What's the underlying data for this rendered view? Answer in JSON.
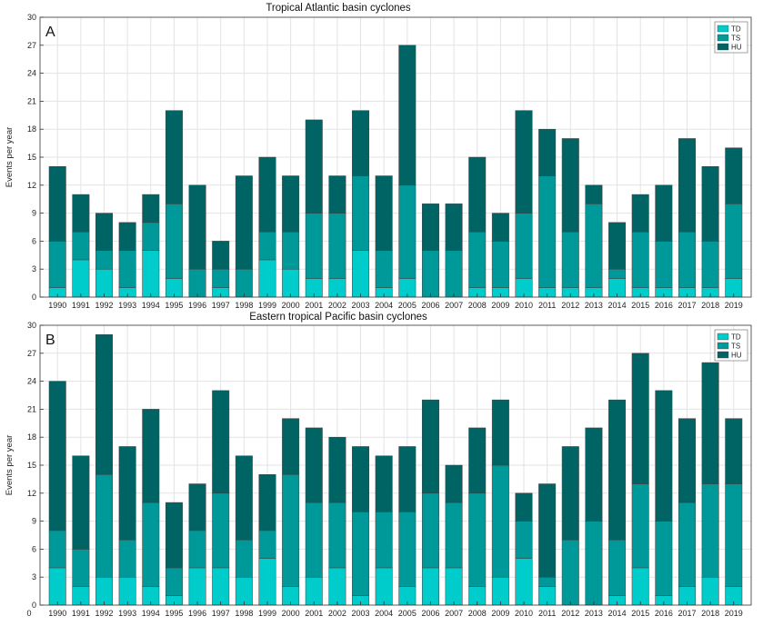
{
  "colors": {
    "TD": "#00cccc",
    "TS": "#009999",
    "HU": "#006464"
  },
  "chart_data": [
    {
      "type": "bar",
      "stacked": true,
      "panel_label": "A",
      "title": "Tropical Atlantic basin cyclones",
      "xlabel": "",
      "ylabel": "Events per year",
      "ylim": [
        0,
        30
      ],
      "yticks": [
        0,
        3,
        6,
        9,
        12,
        15,
        18,
        21,
        24,
        27,
        30
      ],
      "x_zero_label": "",
      "grid": true,
      "legend_position": "top-right",
      "categories": [
        "1990",
        "1991",
        "1992",
        "1993",
        "1994",
        "1995",
        "1996",
        "1997",
        "1998",
        "1999",
        "2000",
        "2001",
        "2002",
        "2003",
        "2004",
        "2005",
        "2006",
        "2007",
        "2008",
        "2009",
        "2010",
        "2011",
        "2012",
        "2013",
        "2014",
        "2015",
        "2016",
        "2017",
        "2018",
        "2019"
      ],
      "series": [
        {
          "name": "TD",
          "values": [
            1,
            4,
            3,
            1,
            5,
            2,
            0,
            1,
            0,
            4,
            3,
            2,
            2,
            5,
            1,
            2,
            0,
            0,
            1,
            1,
            2,
            1,
            1,
            1,
            2,
            1,
            1,
            1,
            1,
            2
          ]
        },
        {
          "name": "TS",
          "values": [
            5,
            3,
            2,
            4,
            3,
            8,
            3,
            2,
            3,
            3,
            4,
            7,
            7,
            8,
            4,
            10,
            5,
            5,
            6,
            5,
            7,
            12,
            6,
            9,
            1,
            6,
            5,
            6,
            5,
            8
          ]
        },
        {
          "name": "HU",
          "values": [
            8,
            4,
            4,
            3,
            3,
            10,
            9,
            3,
            10,
            8,
            6,
            10,
            4,
            7,
            8,
            15,
            5,
            5,
            8,
            3,
            11,
            5,
            10,
            2,
            5,
            4,
            6,
            10,
            8,
            6
          ]
        }
      ]
    },
    {
      "type": "bar",
      "stacked": true,
      "panel_label": "B",
      "title": "Eastern tropical Pacific basin cyclones",
      "xlabel": "",
      "ylabel": "Events per year",
      "ylim": [
        0,
        30
      ],
      "yticks": [
        0,
        3,
        6,
        9,
        12,
        15,
        18,
        21,
        24,
        27,
        30
      ],
      "x_zero_label": "0",
      "grid": true,
      "legend_position": "top-right",
      "categories": [
        "1990",
        "1991",
        "1992",
        "1993",
        "1994",
        "1995",
        "1996",
        "1997",
        "1998",
        "1999",
        "2000",
        "2001",
        "2002",
        "2003",
        "2004",
        "2005",
        "2006",
        "2007",
        "2008",
        "2009",
        "2010",
        "2011",
        "2012",
        "2013",
        "2014",
        "2015",
        "2016",
        "2017",
        "2018",
        "2019"
      ],
      "series": [
        {
          "name": "TD",
          "values": [
            4,
            2,
            3,
            3,
            2,
            1,
            4,
            4,
            3,
            5,
            2,
            3,
            4,
            1,
            4,
            2,
            4,
            4,
            2,
            3,
            5,
            2,
            0,
            0,
            1,
            4,
            1,
            2,
            3,
            2
          ]
        },
        {
          "name": "TS",
          "values": [
            4,
            4,
            11,
            4,
            9,
            3,
            4,
            8,
            4,
            3,
            12,
            8,
            7,
            9,
            6,
            8,
            8,
            7,
            10,
            12,
            4,
            1,
            7,
            9,
            6,
            9,
            8,
            9,
            10,
            11
          ]
        },
        {
          "name": "HU",
          "values": [
            16,
            10,
            15,
            10,
            10,
            7,
            5,
            11,
            9,
            6,
            6,
            8,
            7,
            7,
            6,
            7,
            10,
            4,
            7,
            7,
            3,
            10,
            10,
            10,
            15,
            14,
            14,
            9,
            13,
            7
          ]
        }
      ]
    }
  ]
}
